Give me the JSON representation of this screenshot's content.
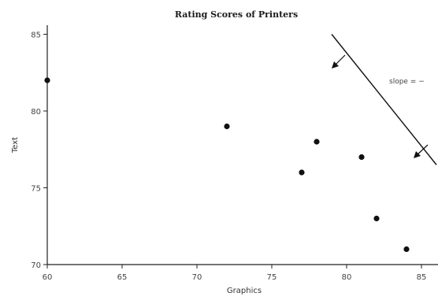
{
  "chart_data": {
    "type": "scatter",
    "title": "Rating Scores of Printers",
    "xlabel": "Graphics",
    "ylabel": "Text",
    "xlim": [
      60,
      86
    ],
    "ylim": [
      70,
      86
    ],
    "xticks": [
      "60",
      "65",
      "70",
      "75",
      "80",
      "85"
    ],
    "yticks": [
      "70",
      "75",
      "80",
      "85"
    ],
    "grid": false,
    "points": [
      {
        "x": 60,
        "y": 82
      },
      {
        "x": 72,
        "y": 79
      },
      {
        "x": 77,
        "y": 76
      },
      {
        "x": 78,
        "y": 78
      },
      {
        "x": 81,
        "y": 77
      },
      {
        "x": 82,
        "y": 73
      },
      {
        "x": 84,
        "y": 71
      }
    ],
    "line": {
      "from": {
        "x": 79,
        "y": 85
      },
      "to": {
        "x": 86,
        "y": 76.5
      }
    },
    "annotation": "slope = −",
    "colors": {
      "points": "#111111",
      "axis": "#222222",
      "line": "#111111"
    }
  }
}
